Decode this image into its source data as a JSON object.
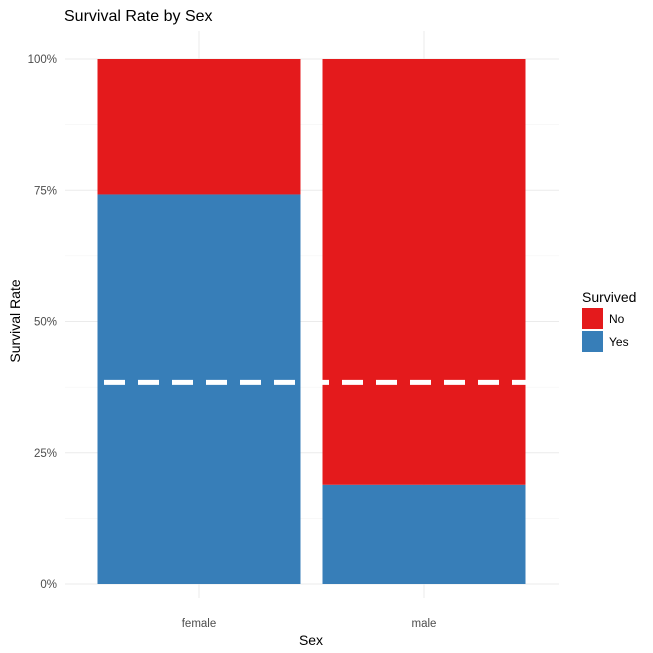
{
  "chart_data": {
    "type": "bar",
    "stacked": true,
    "title": "Survival Rate by Sex",
    "xlabel": "Sex",
    "ylabel": "Survival Rate",
    "categories": [
      "female",
      "male"
    ],
    "y_ticks": [
      "0%",
      "25%",
      "50%",
      "75%",
      "100%"
    ],
    "ylim": [
      0,
      1
    ],
    "grid": true,
    "series": [
      {
        "name": "Yes",
        "color": "#377EB8",
        "values": [
          0.742,
          0.189
        ]
      },
      {
        "name": "No",
        "color": "#E41A1C",
        "values": [
          0.258,
          0.811
        ]
      }
    ],
    "reference_line": {
      "style": "dashed",
      "color": "#FFFFFF",
      "value": 0.384
    },
    "legend": {
      "title": "Survived",
      "position": "right",
      "entries": [
        {
          "label": "No",
          "color": "#E41A1C"
        },
        {
          "label": "Yes",
          "color": "#377EB8"
        }
      ]
    }
  }
}
